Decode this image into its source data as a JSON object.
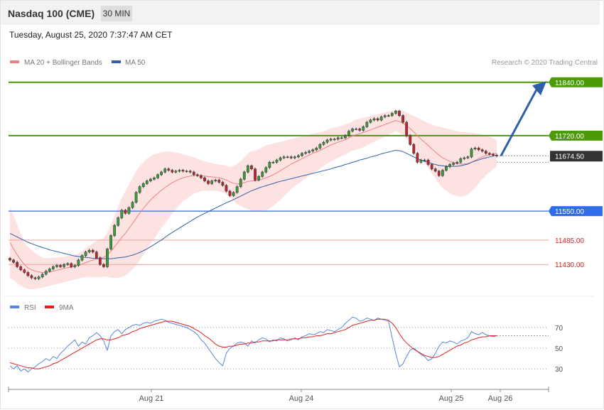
{
  "header": {
    "title": "Nasdaq 100 (CME)",
    "timeframe": "30 MIN",
    "datetime": "Tuesday, August 25, 2020 7:37:47 AM CET"
  },
  "legend": {
    "ma20_label": "MA 20 + Bollinger Bands",
    "ma50_label": "MA 50",
    "credit": "Research © 2020 Trading Central",
    "rsi_label": "RSI",
    "ma9_label": "9MA"
  },
  "colors": {
    "ma20": "#f08080",
    "ma50": "#2f5fa8",
    "bands_fill": "#fde2e2",
    "resistance": "#4c9a08",
    "support": "#2f6bea",
    "minor_level": "#e02020",
    "current_price": "#333333",
    "arrow": "#2f5fa8",
    "up_candle": "#3a9c3a",
    "down_candle": "#c0242f",
    "rsi": "#5b84e0",
    "rsi_ma": "#e02020"
  },
  "chart_data": {
    "type": "candlestick",
    "timeframe": "30 MIN",
    "ylim": [
      11360,
      11870
    ],
    "x_ticks": [
      "Aug 21",
      "Aug 24",
      "Aug 25",
      "Aug 26"
    ],
    "levels": [
      {
        "value": 11840.0,
        "label": "11840.00",
        "kind": "resistance"
      },
      {
        "value": 11720.0,
        "label": "11720.00",
        "kind": "resistance"
      },
      {
        "value": 11674.5,
        "label": "11674.50",
        "kind": "current"
      },
      {
        "value": 11550.0,
        "label": "11550.00",
        "kind": "support"
      },
      {
        "value": 11485.0,
        "label": "11485.00",
        "kind": "minor"
      },
      {
        "value": 11430.0,
        "label": "11430.00",
        "kind": "minor"
      }
    ],
    "close": [
      11440,
      11435,
      11425,
      11418,
      11412,
      11405,
      11400,
      11398,
      11402,
      11408,
      11415,
      11420,
      11425,
      11428,
      11425,
      11430,
      11432,
      11425,
      11428,
      11440,
      11450,
      11458,
      11462,
      11458,
      11445,
      11430,
      11425,
      11465,
      11495,
      11518,
      11535,
      11552,
      11545,
      11558,
      11570,
      11592,
      11605,
      11612,
      11618,
      11622,
      11625,
      11632,
      11638,
      11645,
      11642,
      11638,
      11640,
      11642,
      11640,
      11640,
      11638,
      11632,
      11630,
      11625,
      11618,
      11612,
      11618,
      11620,
      11615,
      11608,
      11595,
      11585,
      11592,
      11605,
      11622,
      11638,
      11652,
      11645,
      11620,
      11628,
      11638,
      11648,
      11660,
      11660,
      11665,
      11670,
      11672,
      11672,
      11670,
      11672,
      11675,
      11680,
      11682,
      11685,
      11688,
      11692,
      11700,
      11705,
      11710,
      11712,
      11712,
      11715,
      11715,
      11720,
      11730,
      11735,
      11735,
      11732,
      11740,
      11750,
      11755,
      11758,
      11755,
      11762,
      11765,
      11765,
      11770,
      11775,
      11765,
      11750,
      11720,
      11700,
      11680,
      11660,
      11665,
      11665,
      11655,
      11645,
      11640,
      11630,
      11642,
      11650,
      11655,
      11658,
      11660,
      11668,
      11670,
      11672,
      11690,
      11692,
      11688,
      11685,
      11680,
      11678,
      11676,
      11674.5
    ],
    "ma20": [
      11480,
      11465,
      11452,
      11440,
      11430,
      11422,
      11418,
      11415,
      11413,
      11412,
      11412,
      11413,
      11415,
      11417,
      11419,
      11421,
      11423,
      11424,
      11426,
      11428,
      11431,
      11434,
      11437,
      11440,
      11442,
      11444,
      11446,
      11452,
      11460,
      11470,
      11480,
      11491,
      11500,
      11511,
      11522,
      11534,
      11546,
      11556,
      11566,
      11575,
      11583,
      11590,
      11597,
      11603,
      11609,
      11614,
      11618,
      11622,
      11625,
      11627,
      11629,
      11630,
      11630,
      11630,
      11629,
      11628,
      11627,
      11626,
      11625,
      11623,
      11620,
      11616,
      11613,
      11611,
      11612,
      11614,
      11617,
      11618,
      11618,
      11620,
      11622,
      11625,
      11628,
      11632,
      11636,
      11641,
      11646,
      11651,
      11656,
      11660,
      11664,
      11668,
      11672,
      11676,
      11680,
      11683,
      11687,
      11691,
      11695,
      11699,
      11702,
      11705,
      11708,
      11711,
      11715,
      11719,
      11722,
      11724,
      11727,
      11730,
      11733,
      11736,
      11739,
      11742,
      11745,
      11748,
      11751,
      11754,
      11752,
      11748,
      11742,
      11736,
      11728,
      11720,
      11712,
      11705,
      11698,
      11690,
      11683,
      11676,
      11670,
      11666,
      11662,
      11659,
      11657,
      11656,
      11656,
      11657,
      11660,
      11664,
      11668,
      11672,
      11675,
      11677,
      11679,
      11680
    ],
    "ma50": [
      11500,
      11496,
      11492,
      11488,
      11484,
      11480,
      11477,
      11474,
      11471,
      11468,
      11466,
      11463,
      11461,
      11459,
      11457,
      11455,
      11453,
      11451,
      11449,
      11448,
      11447,
      11446,
      11445,
      11444,
      11444,
      11443,
      11443,
      11443,
      11443,
      11444,
      11445,
      11446,
      11447,
      11449,
      11451,
      11454,
      11457,
      11461,
      11465,
      11470,
      11475,
      11480,
      11485,
      11491,
      11497,
      11502,
      11507,
      11512,
      11517,
      11522,
      11527,
      11532,
      11537,
      11541,
      11545,
      11549,
      11553,
      11557,
      11561,
      11565,
      11569,
      11572,
      11576,
      11580,
      11584,
      11588,
      11592,
      11596,
      11599,
      11602,
      11605,
      11607,
      11610,
      11612,
      11615,
      11617,
      11619,
      11621,
      11623,
      11625,
      11627,
      11629,
      11631,
      11633,
      11635,
      11637,
      11639,
      11641,
      11643,
      11645,
      11648,
      11650,
      11652,
      11655,
      11657,
      11660,
      11662,
      11665,
      11667,
      11669,
      11672,
      11674,
      11676,
      11679,
      11681,
      11683,
      11685,
      11687,
      11686,
      11684,
      11680,
      11676,
      11672,
      11668,
      11665,
      11662,
      11660,
      11657,
      11655,
      11653,
      11652,
      11651,
      11651,
      11651,
      11651,
      11652,
      11654,
      11656,
      11660,
      11663,
      11665,
      11668,
      11670,
      11672,
      11674,
      11676
    ],
    "bb_upper": [
      11560,
      11540,
      11520,
      11500,
      11480,
      11470,
      11462,
      11455,
      11450,
      11446,
      11444,
      11444,
      11445,
      11446,
      11447,
      11448,
      11449,
      11450,
      11452,
      11455,
      11460,
      11466,
      11472,
      11478,
      11483,
      11487,
      11489,
      11502,
      11520,
      11540,
      11560,
      11580,
      11595,
      11610,
      11625,
      11640,
      11652,
      11660,
      11668,
      11674,
      11678,
      11680,
      11682,
      11684,
      11684,
      11683,
      11682,
      11680,
      11678,
      11676,
      11674,
      11671,
      11668,
      11665,
      11662,
      11660,
      11658,
      11656,
      11655,
      11654,
      11652,
      11650,
      11652,
      11656,
      11662,
      11670,
      11680,
      11685,
      11686,
      11690,
      11694,
      11698,
      11700,
      11702,
      11704,
      11706,
      11708,
      11710,
      11712,
      11714,
      11716,
      11718,
      11720,
      11722,
      11724,
      11726,
      11728,
      11730,
      11733,
      11736,
      11738,
      11740,
      11742,
      11745,
      11748,
      11752,
      11756,
      11758,
      11760,
      11762,
      11764,
      11766,
      11768,
      11770,
      11772,
      11774,
      11776,
      11778,
      11778,
      11776,
      11772,
      11768,
      11764,
      11760,
      11756,
      11752,
      11748,
      11745,
      11742,
      11740,
      11738,
      11736,
      11734,
      11732,
      11730,
      11729,
      11728,
      11727,
      11726,
      11725,
      11724,
      11722,
      11720,
      11717,
      11714,
      11710
    ],
    "bb_lower": [
      11400,
      11395,
      11388,
      11382,
      11378,
      11375,
      11374,
      11375,
      11376,
      11378,
      11380,
      11382,
      11384,
      11386,
      11388,
      11390,
      11392,
      11394,
      11396,
      11398,
      11400,
      11402,
      11402,
      11402,
      11401,
      11401,
      11403,
      11402,
      11400,
      11400,
      11400,
      11402,
      11405,
      11412,
      11419,
      11428,
      11440,
      11452,
      11464,
      11476,
      11488,
      11500,
      11512,
      11522,
      11534,
      11545,
      11554,
      11564,
      11572,
      11578,
      11584,
      11589,
      11592,
      11595,
      11596,
      11596,
      11596,
      11596,
      11595,
      11592,
      11588,
      11582,
      11574,
      11566,
      11562,
      11558,
      11554,
      11551,
      11550,
      11550,
      11550,
      11552,
      11556,
      11562,
      11568,
      11576,
      11584,
      11592,
      11600,
      11606,
      11612,
      11618,
      11624,
      11630,
      11636,
      11640,
      11646,
      11652,
      11657,
      11662,
      11666,
      11670,
      11674,
      11677,
      11682,
      11686,
      11688,
      11690,
      11694,
      11698,
      11702,
      11706,
      11710,
      11714,
      11718,
      11722,
      11726,
      11730,
      11726,
      11720,
      11712,
      11704,
      11692,
      11680,
      11668,
      11658,
      11648,
      11635,
      11624,
      11612,
      11602,
      11596,
      11590,
      11586,
      11584,
      11583,
      11584,
      11587,
      11594,
      11603,
      11612,
      11622,
      11630,
      11637,
      11644,
      11650
    ],
    "rsi": {
      "levels": [
        70,
        50,
        30
      ],
      "ylim": [
        15,
        85
      ],
      "rsi": [
        33,
        30,
        33,
        28,
        30,
        27,
        30,
        32,
        35,
        37,
        40,
        38,
        42,
        40,
        45,
        48,
        52,
        55,
        58,
        52,
        56,
        54,
        60,
        62,
        65,
        62,
        57,
        48,
        62,
        66,
        68,
        64,
        68,
        70,
        72,
        73,
        72,
        74,
        75,
        74,
        76,
        77,
        78,
        77,
        75,
        74,
        73,
        72,
        71,
        70,
        68,
        66,
        63,
        58,
        55,
        50,
        45,
        40,
        36,
        33,
        45,
        50,
        52,
        55,
        56,
        55,
        52,
        57,
        55,
        58,
        60,
        59,
        56,
        58,
        57,
        60,
        59,
        57,
        58,
        60,
        58,
        61,
        62,
        64,
        63,
        64,
        66,
        65,
        68,
        67,
        66,
        68,
        70,
        74,
        77,
        80,
        79,
        76,
        77,
        79,
        78,
        77,
        79,
        78,
        77,
        76,
        60,
        45,
        32,
        35,
        42,
        48,
        50,
        47,
        44,
        42,
        38,
        40,
        45,
        52,
        56,
        55,
        57,
        56,
        54,
        57,
        58,
        60,
        66,
        64,
        63,
        65,
        63,
        62,
        61,
        62
      ],
      "ma9": [
        36,
        35,
        34,
        33,
        32,
        31,
        31,
        30,
        30,
        31,
        32,
        33,
        35,
        36,
        38,
        40,
        42,
        44,
        46,
        48,
        50,
        52,
        54,
        56,
        58,
        59,
        59,
        58,
        58,
        59,
        60,
        62,
        63,
        64,
        66,
        67,
        69,
        70,
        71,
        72,
        73,
        74,
        75,
        76,
        76,
        76,
        75,
        74,
        73,
        72,
        71,
        69,
        67,
        65,
        62,
        60,
        57,
        54,
        52,
        51,
        51,
        52,
        52,
        53,
        54,
        54,
        55,
        55,
        56,
        56,
        57,
        57,
        57,
        57,
        58,
        58,
        58,
        58,
        59,
        59,
        59,
        60,
        60,
        61,
        61,
        62,
        62,
        63,
        64,
        64,
        65,
        66,
        67,
        68,
        70,
        72,
        73,
        74,
        75,
        76,
        77,
        77,
        78,
        78,
        78,
        77,
        74,
        70,
        64,
        59,
        55,
        52,
        49,
        47,
        45,
        43,
        42,
        41,
        41,
        42,
        44,
        46,
        48,
        50,
        52,
        53,
        55,
        56,
        58,
        59,
        60,
        61,
        61,
        62,
        62,
        62
      ]
    }
  }
}
